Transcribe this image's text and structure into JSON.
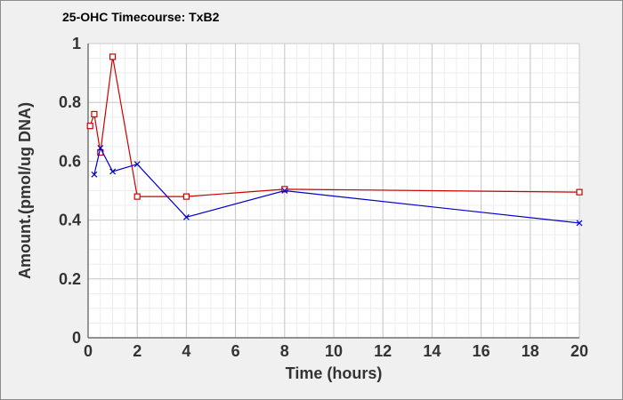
{
  "chart_data": {
    "type": "line",
    "title": "25-OHC Timecourse: TxB2",
    "xlabel": "Time (hours)",
    "ylabel": "Amount.(pmol/ug DNA)",
    "xlim": [
      0,
      20
    ],
    "ylim": [
      0,
      1
    ],
    "x_ticks": [
      "0",
      "2",
      "4",
      "6",
      "8",
      "10",
      "12",
      "14",
      "16",
      "18",
      "20"
    ],
    "y_ticks": [
      "0",
      "0.2",
      "0.4",
      "0.6",
      "0.8",
      "1"
    ],
    "grid": true,
    "background_color": "#f0f0f0",
    "series": [
      {
        "color": "#cc0000",
        "marker": "square",
        "x": [
          0.08,
          0.25,
          0.5,
          1,
          2,
          4,
          8,
          20
        ],
        "y": [
          0.72,
          0.76,
          0.63,
          0.955,
          0.48,
          0.48,
          0.505,
          0.495
        ]
      },
      {
        "color": "#0000cc",
        "marker": "x",
        "x": [
          0.25,
          0.5,
          1,
          2,
          4,
          8,
          20
        ],
        "y": [
          0.555,
          0.645,
          0.565,
          0.59,
          0.41,
          0.5,
          0.39
        ]
      }
    ]
  }
}
